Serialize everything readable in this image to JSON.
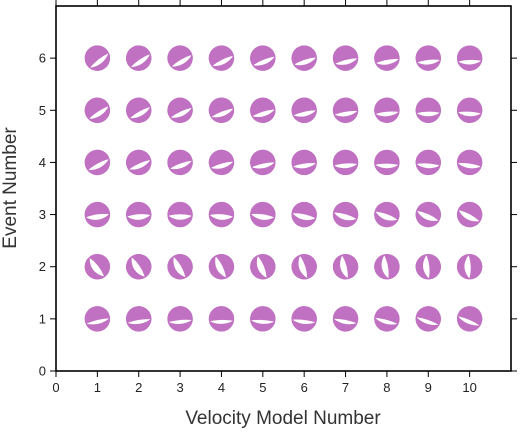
{
  "chart_data": {
    "type": "scatter",
    "title": "",
    "xlabel": "Velocity Model Number",
    "ylabel": "Event Number",
    "xlim": [
      0,
      11
    ],
    "ylim": [
      0,
      7
    ],
    "xticks": [
      0,
      1,
      2,
      3,
      4,
      5,
      6,
      7,
      8,
      9,
      10
    ],
    "yticks": [
      0,
      1,
      2,
      3,
      4,
      5,
      6
    ],
    "grid": false,
    "marker": "focal-mechanism beachball",
    "colors": {
      "compression": "#c071c2",
      "dilatation": "#ffffff",
      "outline": "#c071c2",
      "frame": "#000000"
    },
    "series": [
      {
        "values": [
          [
            1,
            1
          ],
          [
            2,
            1
          ],
          [
            3,
            1
          ],
          [
            4,
            1
          ],
          [
            5,
            1
          ],
          [
            6,
            1
          ],
          [
            7,
            1
          ],
          [
            8,
            1
          ],
          [
            9,
            1
          ],
          [
            10,
            1
          ]
        ]
      },
      {
        "values": [
          [
            1,
            2
          ],
          [
            2,
            2
          ],
          [
            3,
            2
          ],
          [
            4,
            2
          ],
          [
            5,
            2
          ],
          [
            6,
            2
          ],
          [
            7,
            2
          ],
          [
            8,
            2
          ],
          [
            9,
            2
          ],
          [
            10,
            2
          ]
        ]
      },
      {
        "values": [
          [
            1,
            3
          ],
          [
            2,
            3
          ],
          [
            3,
            3
          ],
          [
            4,
            3
          ],
          [
            5,
            3
          ],
          [
            6,
            3
          ],
          [
            7,
            3
          ],
          [
            8,
            3
          ],
          [
            9,
            3
          ],
          [
            10,
            3
          ]
        ]
      },
      {
        "values": [
          [
            1,
            4
          ],
          [
            2,
            4
          ],
          [
            3,
            4
          ],
          [
            4,
            4
          ],
          [
            5,
            4
          ],
          [
            6,
            4
          ],
          [
            7,
            4
          ],
          [
            8,
            4
          ],
          [
            9,
            4
          ],
          [
            10,
            4
          ]
        ]
      },
      {
        "values": [
          [
            1,
            5
          ],
          [
            2,
            5
          ],
          [
            3,
            5
          ],
          [
            4,
            5
          ],
          [
            5,
            5
          ],
          [
            6,
            5
          ],
          [
            7,
            5
          ],
          [
            8,
            5
          ],
          [
            9,
            5
          ],
          [
            10,
            5
          ]
        ]
      },
      {
        "values": [
          [
            1,
            6
          ],
          [
            2,
            6
          ],
          [
            3,
            6
          ],
          [
            4,
            6
          ],
          [
            5,
            6
          ],
          [
            6,
            6
          ],
          [
            7,
            6
          ],
          [
            8,
            6
          ],
          [
            9,
            6
          ],
          [
            10,
            6
          ]
        ]
      }
    ]
  }
}
